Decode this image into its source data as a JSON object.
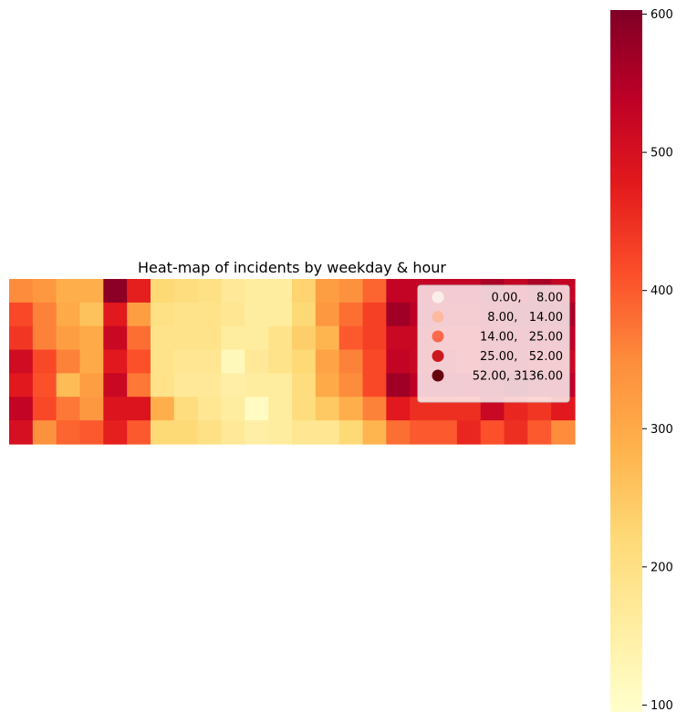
{
  "chart_data": {
    "type": "heatmap",
    "title": "Heat-map of incidents by weekday & hour",
    "xlabel": "",
    "ylabel": "",
    "rows": 7,
    "cols": 24,
    "values": [
      [
        350,
        330,
        290,
        290,
        590,
        470,
        220,
        210,
        200,
        170,
        160,
        160,
        230,
        320,
        340,
        390,
        530,
        530,
        530,
        530,
        560,
        530,
        560,
        530
      ],
      [
        420,
        360,
        300,
        260,
        480,
        320,
        200,
        190,
        190,
        180,
        160,
        160,
        220,
        330,
        380,
        430,
        570,
        540,
        520,
        520,
        540,
        560,
        560,
        560
      ],
      [
        440,
        360,
        320,
        300,
        520,
        380,
        190,
        190,
        190,
        160,
        160,
        190,
        240,
        280,
        400,
        430,
        520,
        520,
        500,
        500,
        540,
        540,
        540,
        540
      ],
      [
        510,
        420,
        360,
        300,
        480,
        410,
        190,
        180,
        180,
        120,
        170,
        190,
        220,
        310,
        360,
        420,
        530,
        520,
        520,
        500,
        540,
        540,
        520,
        520
      ],
      [
        480,
        410,
        270,
        320,
        520,
        370,
        190,
        170,
        170,
        150,
        160,
        160,
        210,
        300,
        350,
        420,
        570,
        540,
        540,
        530,
        550,
        570,
        550,
        540
      ],
      [
        530,
        420,
        370,
        330,
        490,
        490,
        290,
        210,
        180,
        160,
        110,
        160,
        210,
        250,
        290,
        360,
        480,
        450,
        450,
        450,
        520,
        460,
        440,
        480
      ],
      [
        500,
        340,
        390,
        400,
        470,
        400,
        220,
        220,
        200,
        170,
        150,
        160,
        180,
        180,
        220,
        280,
        380,
        400,
        400,
        460,
        410,
        450,
        400,
        350
      ]
    ],
    "colorbar": {
      "min": 95,
      "max": 603,
      "ticks": [
        100,
        200,
        300,
        400,
        500,
        600
      ]
    },
    "colormap": [
      "#ffffcc",
      "#ffeda0",
      "#fed976",
      "#feb24c",
      "#fd8d3c",
      "#fc4e2a",
      "#e31a1c",
      "#bd0026",
      "#800026"
    ],
    "legend": {
      "position": "top-right",
      "items": [
        {
          "label": "0.00,    8.00",
          "color": "#fbeee8"
        },
        {
          "label": "8.00,   14.00",
          "color": "#fcbba1"
        },
        {
          "label": "14.00,   25.00",
          "color": "#fb6a4a"
        },
        {
          "label": "25.00,   52.00",
          "color": "#cb181d"
        },
        {
          "label": "52.00, 3136.00",
          "color": "#67000d"
        }
      ]
    }
  }
}
